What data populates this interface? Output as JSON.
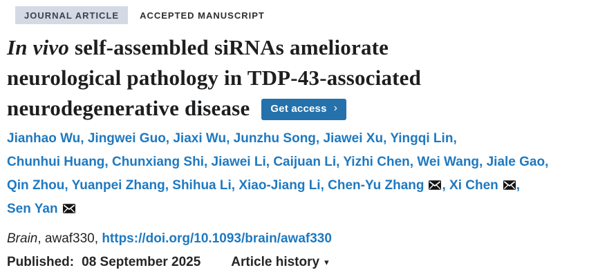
{
  "colors": {
    "badge_bg": "#d4dae4",
    "badge_text": "#3a4150",
    "title_text": "#1d1e20",
    "link_blue": "#1f79c0",
    "button_bg": "#2471ab",
    "dark_text": "#252525"
  },
  "meta": {
    "badge_label": "JOURNAL ARTICLE",
    "manuscript_label": "ACCEPTED MANUSCRIPT"
  },
  "title": {
    "lines": [
      {
        "italic": "In vivo",
        "text": " self-assembled siRNAs ameliorate"
      },
      {
        "text": "neurological pathology in TDP-43-associated"
      },
      {
        "text": "neurodegenerative disease"
      }
    ]
  },
  "get_access": {
    "label": "Get access",
    "chevron": "›"
  },
  "authors": {
    "separator": ", ",
    "lines": [
      [
        {
          "name": "Jianhao Wu"
        },
        {
          "name": "Jingwei Guo"
        },
        {
          "name": "Jiaxi Wu"
        },
        {
          "name": "Junzhu Song"
        },
        {
          "name": "Jiawei Xu"
        },
        {
          "name": "Yingqi Lin"
        }
      ],
      [
        {
          "name": "Chunhui Huang"
        },
        {
          "name": "Chunxiang Shi"
        },
        {
          "name": "Jiawei Li"
        },
        {
          "name": "Caijuan Li"
        },
        {
          "name": "Yizhi Chen"
        },
        {
          "name": "Wei Wang"
        },
        {
          "name": "Jiale Gao"
        }
      ],
      [
        {
          "name": "Qin Zhou"
        },
        {
          "name": "Yuanpei Zhang"
        },
        {
          "name": "Shihua Li"
        },
        {
          "name": "Xiao-Jiang Li"
        },
        {
          "name": "Chen-Yu Zhang",
          "email": true
        },
        {
          "name": "Xi Chen",
          "email": true
        }
      ],
      [
        {
          "name": "Sen Yan",
          "email": true
        }
      ]
    ]
  },
  "citation": {
    "journal": "Brain",
    "article_id": ", awaf330, ",
    "doi_link": "https://doi.org/10.1093/brain/awaf330"
  },
  "published": {
    "label": "Published:",
    "date": "08 September 2025",
    "article_history": "Article history",
    "caret": "▾"
  }
}
